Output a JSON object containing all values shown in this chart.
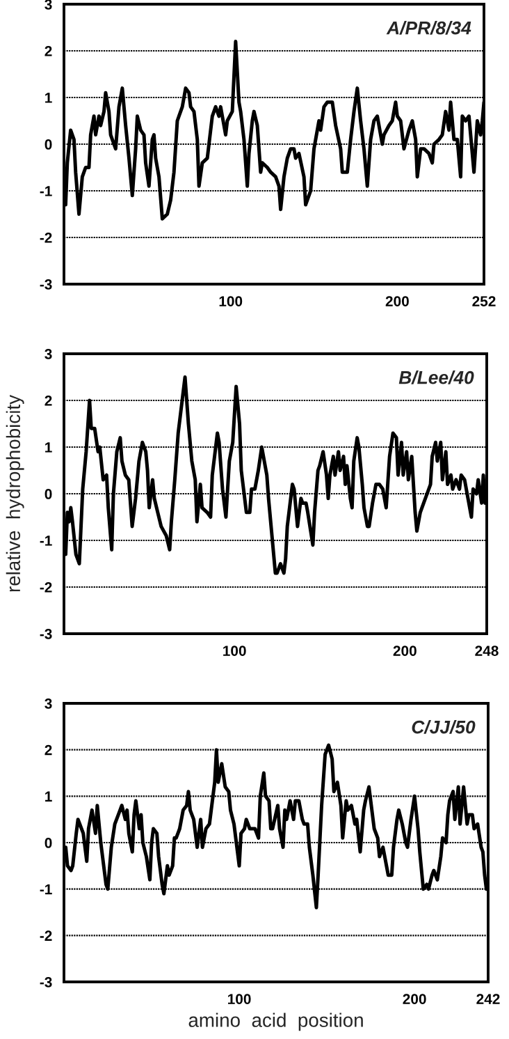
{
  "chart_data": [
    {
      "type": "line",
      "title": "A/PR/8/34",
      "grid": "y",
      "xlim": [
        0,
        252
      ],
      "xticks": [
        100,
        200,
        252
      ],
      "ylim": [
        -3,
        3
      ],
      "yticks": [
        -3,
        -2,
        -1,
        0,
        1,
        2,
        3
      ],
      "x": [
        1,
        2,
        4,
        6,
        7,
        9,
        11,
        13,
        15,
        16,
        18,
        19,
        21,
        22,
        24,
        25,
        27,
        28,
        31,
        33,
        35,
        37,
        39,
        41,
        43,
        44,
        46,
        48,
        49,
        51,
        53,
        54,
        55,
        57,
        59,
        62,
        64,
        66,
        68,
        71,
        73,
        75,
        76,
        78,
        80,
        81,
        83,
        86,
        89,
        91,
        93,
        94,
        97,
        98,
        101,
        103,
        105,
        106,
        108,
        110,
        111,
        113,
        114,
        116,
        118,
        119,
        122,
        124,
        127,
        129,
        130,
        132,
        134,
        136,
        138,
        139,
        141,
        144,
        145,
        148,
        150,
        153,
        154,
        156,
        158,
        161,
        163,
        166,
        167,
        170,
        172,
        174,
        176,
        178,
        180,
        182,
        184,
        186,
        188,
        191,
        192,
        195,
        197,
        199,
        200,
        202,
        204,
        207,
        209,
        211,
        212,
        214,
        216,
        219,
        221,
        222,
        225,
        227,
        229,
        231,
        232,
        234,
        236,
        238,
        239,
        241,
        243,
        245,
        246,
        248,
        250,
        251,
        252
      ],
      "series": [
        {
          "color": "#000000",
          "values": [
            -1.3,
            -0.4,
            0.3,
            0.1,
            -0.6,
            -1.5,
            -0.7,
            -0.5,
            -0.5,
            0.2,
            0.6,
            0.2,
            0.6,
            0.4,
            0.7,
            1.1,
            0.7,
            0.2,
            -0.1,
            0.8,
            1.2,
            0.4,
            -0.3,
            -1.1,
            -0.1,
            0.6,
            0.3,
            0.2,
            -0.4,
            -0.9,
            0.1,
            0.2,
            -0.3,
            -0.7,
            -1.6,
            -1.5,
            -1.2,
            -0.6,
            0.5,
            0.8,
            1.2,
            1.1,
            0.8,
            0.7,
            0.1,
            -0.9,
            -0.4,
            -0.3,
            0.6,
            0.8,
            0.6,
            0.8,
            0.2,
            0.5,
            0.7,
            2.2,
            0.9,
            0.7,
            0.1,
            -0.9,
            -0.2,
            0.5,
            0.7,
            0.4,
            -0.6,
            -0.4,
            -0.5,
            -0.6,
            -0.7,
            -0.9,
            -1.4,
            -0.7,
            -0.3,
            -0.1,
            -0.1,
            -0.3,
            -0.2,
            -0.7,
            -1.3,
            -1.0,
            -0.1,
            0.5,
            0.3,
            0.8,
            0.9,
            0.9,
            0.4,
            -0.1,
            -0.6,
            -0.6,
            0.1,
            0.7,
            1.2,
            0.5,
            -0.1,
            -0.9,
            0.1,
            0.5,
            0.6,
            0.0,
            0.2,
            0.4,
            0.5,
            0.9,
            0.6,
            0.5,
            -0.1,
            0.3,
            0.5,
            0.1,
            -0.7,
            -0.1,
            -0.1,
            -0.2,
            -0.4,
            0.0,
            0.1,
            0.2,
            0.7,
            0.3,
            0.9,
            0.1,
            0.1,
            -0.7,
            0.6,
            0.5,
            0.6,
            -0.2,
            -0.6,
            0.5,
            0.2,
            0.5,
            0.9
          ]
        }
      ]
    },
    {
      "type": "line",
      "title": "B/Lee/40",
      "ylabel": "relative  hydrophobicity",
      "grid": "y",
      "xlim": [
        0,
        248
      ],
      "xticks": [
        100,
        200,
        248
      ],
      "ylim": [
        -3,
        3
      ],
      "yticks": [
        -3,
        -2,
        -1,
        0,
        1,
        2,
        3
      ],
      "x": [
        1,
        2,
        3,
        4,
        5,
        7,
        9,
        11,
        13,
        15,
        16,
        18,
        20,
        21,
        23,
        25,
        26,
        28,
        29,
        31,
        33,
        34,
        36,
        38,
        40,
        42,
        44,
        46,
        48,
        49,
        50,
        52,
        53,
        55,
        57,
        60,
        62,
        63,
        65,
        67,
        71,
        73,
        75,
        77,
        78,
        80,
        81,
        84,
        86,
        87,
        90,
        91,
        93,
        95,
        97,
        99,
        101,
        103,
        104,
        107,
        109,
        110,
        112,
        114,
        116,
        119,
        120,
        122,
        124,
        125,
        127,
        129,
        130,
        131,
        134,
        135,
        137,
        139,
        140,
        142,
        143,
        146,
        147,
        149,
        150,
        152,
        154,
        155,
        156,
        158,
        159,
        161,
        162,
        164,
        165,
        166,
        168,
        169,
        170,
        172,
        173,
        175,
        176,
        178,
        179,
        181,
        183,
        185,
        187,
        189,
        191,
        193,
        195,
        196,
        198,
        199,
        201,
        202,
        204,
        206,
        207,
        209,
        211,
        213,
        215,
        216,
        218,
        219,
        221,
        222,
        224,
        225,
        227,
        228,
        230,
        232,
        233,
        235,
        237,
        239,
        240,
        242,
        243,
        245,
        246,
        247
      ],
      "series": [
        {
          "color": "#000000",
          "values": [
            -1.3,
            -0.4,
            -0.6,
            -0.3,
            -0.6,
            -1.3,
            -1.5,
            0.1,
            0.9,
            2.0,
            1.4,
            1.4,
            0.9,
            1.0,
            0.3,
            0.4,
            -0.3,
            -1.2,
            0.0,
            0.9,
            1.2,
            0.7,
            0.4,
            0.3,
            -0.7,
            -0.1,
            0.7,
            1.1,
            0.9,
            0.5,
            -0.3,
            0.3,
            -0.1,
            -0.4,
            -0.7,
            -0.9,
            -1.2,
            -0.6,
            0.3,
            1.3,
            2.5,
            1.5,
            0.7,
            0.3,
            -0.6,
            0.2,
            -0.3,
            -0.4,
            -0.5,
            0.4,
            1.3,
            1.1,
            0.1,
            -0.5,
            0.7,
            1.1,
            2.3,
            1.5,
            0.5,
            -0.4,
            -0.4,
            0.1,
            0.1,
            0.5,
            1.0,
            0.4,
            -0.1,
            -0.9,
            -1.7,
            -1.7,
            -1.5,
            -1.7,
            -1.4,
            -0.7,
            0.2,
            0.1,
            -0.7,
            -0.1,
            -0.2,
            -0.2,
            -0.4,
            -1.1,
            -0.4,
            0.5,
            0.6,
            0.9,
            0.4,
            -0.1,
            0.4,
            0.8,
            0.4,
            0.9,
            0.5,
            0.8,
            0.2,
            0.6,
            -0.1,
            -0.3,
            0.7,
            1.2,
            1.0,
            0.2,
            -0.3,
            -0.7,
            -0.7,
            -0.2,
            0.2,
            0.2,
            0.1,
            -0.3,
            0.8,
            1.3,
            1.2,
            0.4,
            1.1,
            0.4,
            0.9,
            0.3,
            0.8,
            -0.4,
            -0.8,
            -0.4,
            -0.2,
            0.0,
            0.2,
            0.8,
            1.1,
            0.7,
            1.1,
            0.3,
            0.9,
            0.2,
            0.4,
            0.1,
            0.3,
            0.1,
            0.4,
            0.3,
            -0.1,
            -0.5,
            0.1,
            0.0,
            0.3,
            -0.2,
            0.4,
            -0.2
          ]
        }
      ]
    },
    {
      "type": "line",
      "title": "C/JJ/50",
      "xlabel": "amino  acid  position",
      "grid": "y",
      "xlim": [
        0,
        242
      ],
      "xticks": [
        100,
        200,
        242
      ],
      "ylim": [
        -3,
        3
      ],
      "yticks": [
        -3,
        -2,
        -1,
        0,
        1,
        2,
        3
      ],
      "x": [
        1,
        2,
        4,
        5,
        7,
        8,
        10,
        11,
        13,
        14,
        16,
        18,
        19,
        21,
        22,
        24,
        25,
        27,
        29,
        32,
        33,
        35,
        36,
        37,
        39,
        40,
        41,
        43,
        44,
        45,
        47,
        49,
        50,
        51,
        53,
        54,
        56,
        57,
        59,
        60,
        62,
        63,
        64,
        66,
        68,
        70,
        71,
        72,
        74,
        76,
        78,
        79,
        81,
        83,
        84,
        86,
        87,
        88,
        90,
        92,
        94,
        95,
        97,
        99,
        100,
        101,
        103,
        104,
        106,
        108,
        109,
        111,
        112,
        114,
        115,
        117,
        118,
        119,
        122,
        123,
        125,
        126,
        127,
        129,
        131,
        132,
        134,
        136,
        137,
        139,
        140,
        142,
        144,
        145,
        147,
        149,
        151,
        153,
        154,
        156,
        158,
        159,
        161,
        162,
        164,
        166,
        167,
        169,
        171,
        172,
        174,
        175,
        177,
        179,
        180,
        182,
        183,
        185,
        187,
        188,
        190,
        191,
        193,
        195,
        196,
        198,
        200,
        202,
        203,
        205,
        207,
        208,
        210,
        211,
        213,
        215,
        216,
        218,
        219,
        220,
        222,
        223,
        225,
        226,
        228,
        230,
        231,
        233,
        234,
        236,
        238,
        239,
        240,
        241
      ],
      "series": [
        {
          "color": "#000000",
          "values": [
            -0.1,
            -0.5,
            -0.6,
            -0.5,
            0.2,
            0.5,
            0.3,
            0.2,
            -0.4,
            0.3,
            0.7,
            0.2,
            0.8,
            0.0,
            -0.3,
            -0.9,
            -1.0,
            -0.1,
            0.4,
            0.7,
            0.8,
            0.5,
            0.7,
            0.2,
            -0.2,
            0.6,
            0.9,
            0.3,
            0.6,
            0.0,
            -0.3,
            -0.8,
            0.0,
            0.3,
            0.2,
            -0.3,
            -0.9,
            -1.1,
            -0.5,
            -0.7,
            -0.5,
            0.1,
            0.1,
            0.3,
            0.7,
            0.8,
            1.1,
            0.7,
            0.5,
            -0.1,
            0.5,
            -0.1,
            0.3,
            0.4,
            0.7,
            1.3,
            2.0,
            1.3,
            1.7,
            1.2,
            1.1,
            0.7,
            0.4,
            -0.2,
            -0.5,
            0.2,
            0.3,
            0.5,
            0.3,
            0.3,
            0.3,
            0.1,
            1.0,
            1.5,
            1.0,
            0.9,
            0.3,
            0.3,
            0.8,
            0.3,
            -0.1,
            0.7,
            0.5,
            0.9,
            0.5,
            0.9,
            0.9,
            0.5,
            0.4,
            0.4,
            -0.1,
            -0.7,
            -1.4,
            -0.7,
            0.8,
            1.9,
            2.1,
            1.8,
            1.1,
            1.3,
            0.8,
            0.1,
            0.9,
            0.7,
            0.8,
            0.4,
            0.5,
            -0.2,
            0.7,
            0.9,
            1.2,
            0.9,
            0.3,
            0.1,
            -0.3,
            -0.1,
            -0.3,
            -0.7,
            -0.7,
            -0.1,
            0.5,
            0.7,
            0.4,
            0.0,
            -0.1,
            0.5,
            1.0,
            0.3,
            -0.2,
            -1.0,
            -0.9,
            -1.0,
            -0.7,
            -0.6,
            -0.8,
            -0.3,
            0.1,
            0.0,
            0.6,
            0.9,
            1.1,
            0.5,
            1.2,
            0.4,
            1.2,
            0.4,
            0.6,
            0.6,
            0.3,
            0.4,
            -0.1,
            -0.2,
            -0.7,
            -1.0
          ]
        }
      ]
    }
  ]
}
